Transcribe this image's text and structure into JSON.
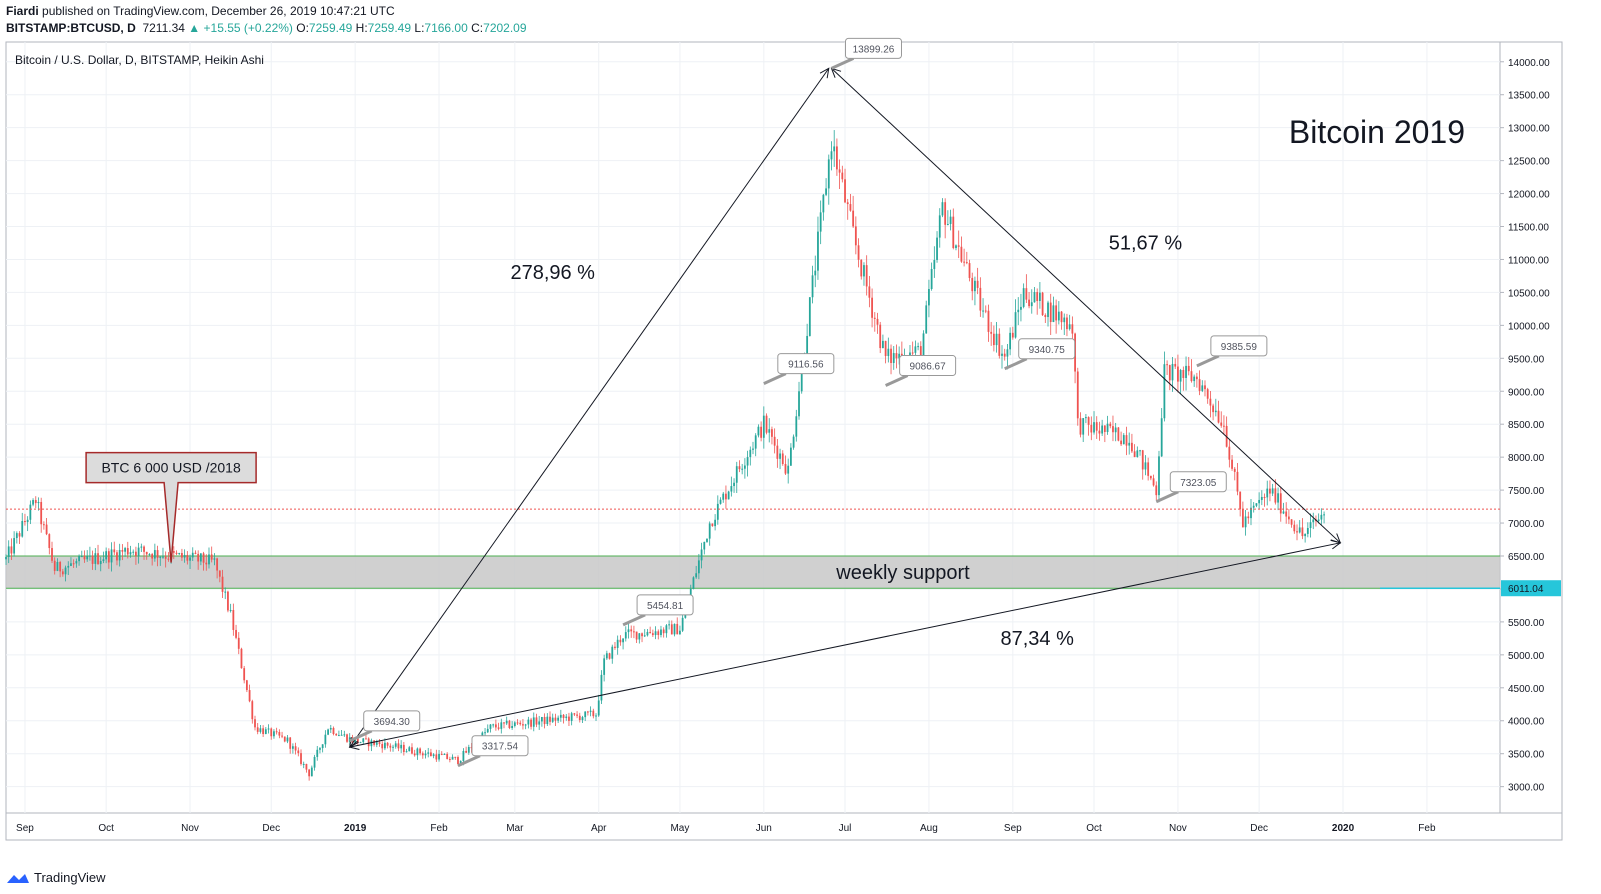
{
  "header": {
    "author": "Fiardi",
    "published": "published on TradingView.com, December 26, 2019 10:47:21 UTC",
    "symbol": "BITSTAMP:BTCUSD, D",
    "last": "7211.34",
    "change": "▲ +15.55 (+0.22%)",
    "o_label": "O:",
    "o": "7259.49",
    "h_label": "H:",
    "h": "7259.49",
    "l_label": "L:",
    "l": "7166.00",
    "c_label": "C:",
    "c": "7202.09"
  },
  "footer": {
    "brand": "TradingView"
  },
  "colors": {
    "up": "#26a69a",
    "down": "#ef5350",
    "grid": "#eef1f5",
    "zone": "#c8c8c8",
    "zone_border": "#4caf50",
    "price_line": "#ef5350",
    "support_label": "#26c6da"
  },
  "chart_data": {
    "type": "candlestick",
    "title": "Bitcoin / U.S. Dollar, D, BITSTAMP, Heikin Ashi",
    "watermark_title": "Bitcoin 2019",
    "y_ticks": [
      3000,
      3500,
      4000,
      4500,
      5000,
      5500,
      6000,
      6500,
      7000,
      7500,
      8000,
      8500,
      9000,
      9500,
      10000,
      10500,
      11000,
      11500,
      12000,
      12500,
      13000,
      13500,
      14000
    ],
    "ylim": [
      2600,
      14300
    ],
    "x_ticks": [
      "Sep",
      "Oct",
      "Nov",
      "Dec",
      "2019",
      "Feb",
      "Mar",
      "Apr",
      "May",
      "Jun",
      "Jul",
      "Aug",
      "Sep",
      "Oct",
      "Nov",
      "Dec",
      "2020",
      "Feb"
    ],
    "x_range": [
      "2018-08-25",
      "2020-02-28"
    ],
    "price_path": [
      [
        "2018-08-25",
        6450
      ],
      [
        "2018-09-05",
        7350
      ],
      [
        "2018-09-12",
        6300
      ],
      [
        "2018-10-10",
        6600
      ],
      [
        "2018-11-10",
        6400
      ],
      [
        "2018-11-16",
        5600
      ],
      [
        "2018-11-25",
        3900
      ],
      [
        "2018-12-07",
        3700
      ],
      [
        "2018-12-15",
        3200
      ],
      [
        "2018-12-22",
        3900
      ],
      [
        "2018-12-31",
        3700
      ],
      [
        "2019-01-10",
        3650
      ],
      [
        "2019-02-08",
        3400
      ],
      [
        "2019-02-20",
        3900
      ],
      [
        "2019-03-31",
        4100
      ],
      [
        "2019-04-03",
        4900
      ],
      [
        "2019-04-10",
        5300
      ],
      [
        "2019-05-01",
        5400
      ],
      [
        "2019-05-12",
        7000
      ],
      [
        "2019-05-25",
        8000
      ],
      [
        "2019-06-01",
        8500
      ],
      [
        "2019-06-10",
        7800
      ],
      [
        "2019-06-26",
        12800
      ],
      [
        "2019-07-05",
        11200
      ],
      [
        "2019-07-16",
        9500
      ],
      [
        "2019-07-29",
        9600
      ],
      [
        "2019-08-06",
        11800
      ],
      [
        "2019-08-20",
        10300
      ],
      [
        "2019-08-29",
        9500
      ],
      [
        "2019-09-05",
        10500
      ],
      [
        "2019-09-23",
        10000
      ],
      [
        "2019-09-25",
        8500
      ],
      [
        "2019-10-14",
        8300
      ],
      [
        "2019-10-24",
        7500
      ],
      [
        "2019-10-27",
        9300
      ],
      [
        "2019-11-08",
        9200
      ],
      [
        "2019-11-18",
        8500
      ],
      [
        "2019-11-25",
        7000
      ],
      [
        "2019-12-05",
        7500
      ],
      [
        "2019-12-17",
        6800
      ],
      [
        "2019-12-26",
        7200
      ]
    ],
    "current_price": 7211.34,
    "support_zone": {
      "label": "weekly support",
      "low": 6011.04,
      "high": 6500
    },
    "support_price_label": "6011.04",
    "callouts": [
      {
        "date": "2019-06-26",
        "price": 13899.26,
        "label": "13899.26"
      },
      {
        "date": "2019-06-01",
        "price": 9116.56,
        "label": "9116.56"
      },
      {
        "date": "2019-07-16",
        "price": 9086.67,
        "label": "9086.67"
      },
      {
        "date": "2019-08-29",
        "price": 9340.75,
        "label": "9340.75"
      },
      {
        "date": "2019-11-08",
        "price": 9385.59,
        "label": "9385.59"
      },
      {
        "date": "2019-04-10",
        "price": 5454.81,
        "label": "5454.81"
      },
      {
        "date": "2018-12-30",
        "price": 3694.3,
        "label": "3694.30"
      },
      {
        "date": "2019-02-08",
        "price": 3317.54,
        "label": "3317.54"
      },
      {
        "date": "2019-10-24",
        "price": 7323.05,
        "label": "7323.05"
      }
    ],
    "pct_labels": [
      {
        "text": "278,96 %",
        "date": "2019-03-15",
        "price": 10700
      },
      {
        "text": "51,67 %",
        "date": "2019-10-20",
        "price": 11150
      },
      {
        "text": "87,34 %",
        "date": "2019-09-10",
        "price": 5150
      }
    ],
    "arrows": [
      {
        "from": [
          "2018-12-30",
          3600
        ],
        "to": [
          "2019-06-25",
          13900
        ]
      },
      {
        "from": [
          "2019-06-26",
          13900
        ],
        "to": [
          "2019-12-31",
          6700
        ]
      },
      {
        "from": [
          "2018-12-30",
          3600
        ],
        "to": [
          "2019-12-31",
          6700
        ]
      }
    ],
    "note": {
      "text": "BTC 6 000 USD /2018",
      "date": "2018-10-25",
      "price": 6400
    }
  }
}
